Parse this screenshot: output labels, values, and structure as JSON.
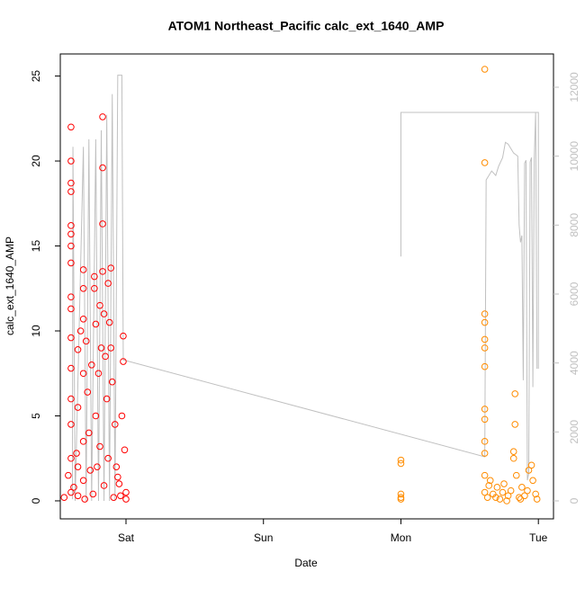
{
  "chart_data": {
    "type": "scatter",
    "title": "ATOM1 Northeast_Pacific calc_ext_1640_AMP",
    "x_label": "Date",
    "y_label": "calc_ext_1640_AMP",
    "xlim": [
      -0.478,
      3.11
    ],
    "ylim": [
      -1.06,
      26.3
    ],
    "y2lim": [
      -522,
      12965
    ],
    "xticks": [
      {
        "value": 0,
        "label": "Sat"
      },
      {
        "value": 1,
        "label": "Sun"
      },
      {
        "value": 2,
        "label": "Mon"
      },
      {
        "value": 3,
        "label": "Tue"
      }
    ],
    "yticks": [
      0,
      5,
      10,
      15,
      20,
      25
    ],
    "y2ticks": [
      0,
      2000,
      4000,
      6000,
      8000,
      10000,
      12000
    ],
    "y2color": "#c0c0c0",
    "series": [
      {
        "color": "#ff0000",
        "type": "scatter",
        "x": [
          -0.4,
          -0.4,
          -0.4,
          -0.4,
          -0.4,
          -0.4,
          -0.4,
          -0.4,
          -0.4,
          -0.4,
          -0.4,
          -0.4,
          -0.4,
          -0.4,
          -0.4,
          -0.4,
          -0.35,
          -0.35,
          -0.35,
          -0.35,
          -0.33,
          -0.31,
          -0.31,
          -0.31,
          -0.31,
          -0.31,
          -0.31,
          -0.29,
          -0.28,
          -0.27,
          -0.25,
          -0.23,
          -0.23,
          -0.22,
          -0.22,
          -0.21,
          -0.2,
          -0.19,
          -0.18,
          -0.17,
          -0.17,
          -0.17,
          -0.17,
          -0.16,
          -0.15,
          -0.14,
          -0.13,
          -0.12,
          -0.11,
          -0.11,
          -0.1,
          -0.08,
          -0.07,
          -0.05,
          -0.03,
          -0.02,
          -0.02,
          -0.01,
          0,
          -0.45,
          -0.42,
          -0.38,
          -0.36,
          -0.3,
          -0.26,
          -0.24,
          -0.19,
          -0.16,
          -0.13,
          -0.09,
          -0.06,
          -0.04,
          0
        ],
        "values": [
          22.0,
          20.0,
          18.7,
          18.2,
          16.2,
          15.7,
          15.0,
          14.0,
          12.0,
          11.3,
          9.6,
          7.8,
          6.0,
          4.5,
          2.5,
          0.5,
          8.9,
          5.5,
          2.0,
          0.3,
          10.0,
          13.6,
          12.5,
          10.7,
          7.5,
          3.5,
          1.2,
          9.4,
          6.4,
          4.0,
          8.0,
          13.2,
          12.5,
          10.4,
          5.0,
          2.0,
          7.5,
          11.5,
          9.0,
          22.6,
          19.6,
          16.3,
          13.5,
          11.0,
          8.5,
          6.0,
          12.8,
          10.5,
          13.7,
          9.0,
          7.0,
          4.5,
          2.0,
          1.0,
          5.0,
          9.7,
          8.2,
          3.0,
          0.5,
          0.2,
          1.5,
          0.8,
          2.8,
          0.1,
          1.8,
          0.4,
          3.2,
          0.9,
          2.5,
          0.2,
          1.4,
          0.3,
          0.1
        ]
      },
      {
        "color": "#ff8c00",
        "type": "scatter",
        "x": [
          2.0,
          2.0,
          2.0,
          2.0,
          2.0,
          2.61,
          2.61,
          2.61,
          2.61,
          2.61,
          2.61,
          2.61,
          2.61,
          2.61,
          2.61,
          2.61,
          2.61,
          2.61,
          2.63,
          2.65,
          2.67,
          2.7,
          2.72,
          2.75,
          2.78,
          2.8,
          2.83,
          2.83,
          2.82,
          2.82,
          2.84,
          2.86,
          2.88,
          2.9,
          2.93,
          2.95,
          2.96,
          2.98,
          2.99,
          2.64,
          2.69,
          2.74,
          2.77,
          2.87,
          2.92
        ],
        "values": [
          2.4,
          2.2,
          0.4,
          0.2,
          0.1,
          25.4,
          19.9,
          11.0,
          10.5,
          9.5,
          9.0,
          7.9,
          5.4,
          4.8,
          3.5,
          2.8,
          1.5,
          0.5,
          0.2,
          1.2,
          0.4,
          0.8,
          0.1,
          1.0,
          0.3,
          0.6,
          6.3,
          4.5,
          2.9,
          2.5,
          1.5,
          0.2,
          0.8,
          0.3,
          1.8,
          2.1,
          1.2,
          0.4,
          0.1,
          0.9,
          0.2,
          0.5,
          0.0,
          0.1,
          0.6
        ]
      },
      {
        "color": "#c0c0c0",
        "type": "line",
        "axis": "y2",
        "x": [
          -0.39,
          -0.386,
          -0.37,
          -0.31,
          -0.29,
          -0.27,
          -0.25,
          -0.22,
          -0.2,
          -0.18,
          -0.16,
          -0.14,
          -0.12,
          -0.1,
          -0.08,
          -0.06,
          -0.03,
          -0.02,
          2.61,
          2.62,
          2.66,
          2.69,
          2.71,
          2.74,
          2.76,
          2.78,
          2.82,
          2.85,
          2.86,
          2.87,
          2.88,
          2.89,
          2.9,
          2.91,
          2.92,
          2.93,
          2.94,
          2.95,
          2.96,
          2.97,
          2.98,
          2.99,
          null,
          2.0,
          2.0,
          3.0,
          3.0
        ],
        "values": [
          50,
          10270,
          0,
          10270,
          0,
          10490,
          0,
          10490,
          0,
          10750,
          0,
          11200,
          0,
          11800,
          0,
          12350,
          12350,
          4090,
          1280,
          9310,
          9570,
          9440,
          9700,
          9960,
          10400,
          10350,
          10090,
          10000,
          8000,
          7500,
          7700,
          3500,
          9800,
          9880,
          600,
          800,
          9830,
          9960,
          3300,
          9900,
          11270,
          3830,
          null,
          7090,
          11270,
          11270,
          3830
        ]
      }
    ]
  }
}
